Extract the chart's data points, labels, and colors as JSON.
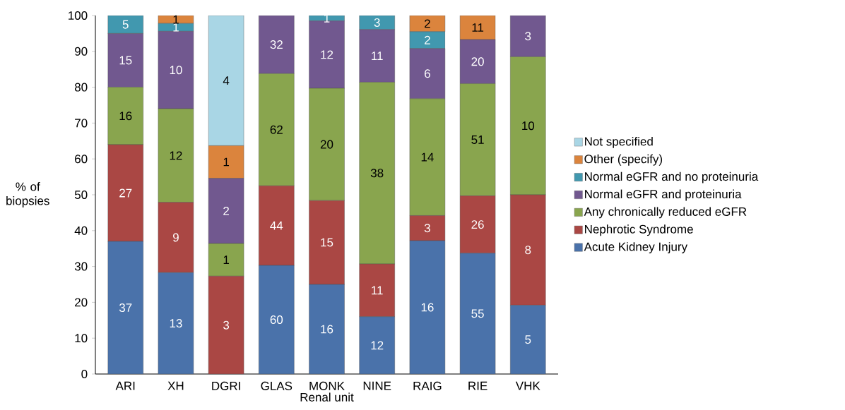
{
  "chart_data": {
    "type": "bar",
    "stacked": true,
    "xlabel": "Renal unit",
    "ylabel": "% of biopsies",
    "categories": [
      "ARI",
      "XH",
      "DGRI",
      "GLAS",
      "MONK",
      "NINE",
      "RAIG",
      "RIE",
      "VHK"
    ],
    "ylim": [
      0,
      100
    ],
    "yticks": [
      0,
      10,
      20,
      30,
      40,
      50,
      60,
      70,
      80,
      90,
      100
    ],
    "grid": false,
    "legend": "right",
    "series": [
      {
        "name": "Acute Kidney Injury",
        "color": "#4a72aa",
        "values": [
          37,
          28.3,
          0,
          30.3,
          25,
          16,
          37.2,
          33.7,
          19.2
        ]
      },
      {
        "name": "Nephrotic Syndrome",
        "color": "#aa4744",
        "values": [
          27,
          19.6,
          27.3,
          22.2,
          23.4,
          14.7,
          7.0,
          16.0,
          30.8
        ]
      },
      {
        "name": "Any chronically reduced eGFR",
        "color": "#89a54e",
        "values": [
          16,
          26.1,
          9.1,
          31.3,
          31.3,
          50.7,
          32.6,
          31.3,
          38.5
        ]
      },
      {
        "name": "Normal eGFR and proteinuria",
        "color": "#71588f",
        "values": [
          15,
          21.6,
          18.2,
          16.2,
          18.8,
          14.7,
          14.0,
          12.3,
          11.5
        ]
      },
      {
        "name": "Normal eGFR and no proteinuria",
        "color": "#4198af",
        "values": [
          5,
          2.2,
          0,
          0,
          1.5,
          3.9,
          4.7,
          0,
          0
        ]
      },
      {
        "name": "Other (specify)",
        "color": "#db843d",
        "values": [
          0,
          2.2,
          9.1,
          0,
          0,
          0,
          4.5,
          6.7,
          0
        ]
      },
      {
        "name": "Not specified",
        "color": "#a9d6e5",
        "values": [
          0,
          0,
          36.3,
          0,
          0,
          0,
          0,
          0,
          0
        ]
      }
    ],
    "annotations": [
      "37",
      "27",
      "16",
      "15",
      "5",
      "13",
      "9",
      "12",
      "10",
      "1",
      "1",
      "3",
      "1",
      "2",
      "1",
      "4",
      "60",
      "44",
      "62",
      "32",
      "16",
      "15",
      "20",
      "12",
      "1",
      "12",
      "11",
      "38",
      "11",
      "3",
      "16",
      "3",
      "14",
      "6",
      "2",
      "2",
      "55",
      "26",
      "51",
      "20",
      "11",
      "5",
      "8",
      "10",
      "3"
    ]
  }
}
